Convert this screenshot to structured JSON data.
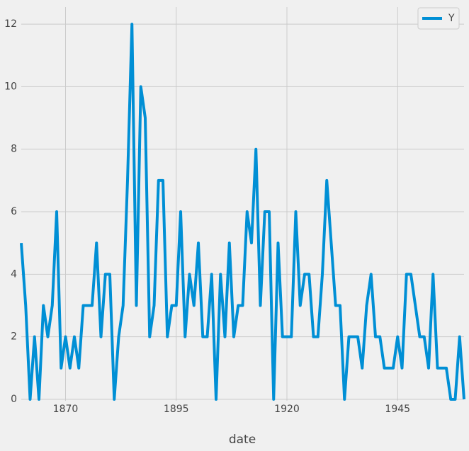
{
  "chart_data": {
    "type": "line",
    "x": [
      1860,
      1861,
      1862,
      1863,
      1864,
      1865,
      1866,
      1867,
      1868,
      1869,
      1870,
      1871,
      1872,
      1873,
      1874,
      1875,
      1876,
      1877,
      1878,
      1879,
      1880,
      1881,
      1882,
      1883,
      1884,
      1885,
      1886,
      1887,
      1888,
      1889,
      1890,
      1891,
      1892,
      1893,
      1894,
      1895,
      1896,
      1897,
      1898,
      1899,
      1900,
      1901,
      1902,
      1903,
      1904,
      1905,
      1906,
      1907,
      1908,
      1909,
      1910,
      1911,
      1912,
      1913,
      1914,
      1915,
      1916,
      1917,
      1918,
      1919,
      1920,
      1921,
      1922,
      1923,
      1924,
      1925,
      1926,
      1927,
      1928,
      1929,
      1930,
      1931,
      1932,
      1933,
      1934,
      1935,
      1936,
      1937,
      1938,
      1939,
      1940,
      1941,
      1942,
      1943,
      1944,
      1945,
      1946,
      1947,
      1948,
      1949,
      1950,
      1951,
      1952,
      1953,
      1954,
      1955,
      1956,
      1957,
      1958,
      1959,
      1960
    ],
    "series": [
      {
        "name": "Y",
        "color": "#008fd5",
        "values": [
          5,
          3,
          0,
          2,
          0,
          3,
          2,
          3,
          6,
          1,
          2,
          1,
          2,
          1,
          3,
          3,
          3,
          5,
          2,
          4,
          4,
          0,
          2,
          3,
          7,
          12,
          3,
          10,
          9,
          2,
          3,
          7,
          7,
          2,
          3,
          3,
          6,
          2,
          4,
          3,
          5,
          2,
          2,
          4,
          0,
          4,
          2,
          5,
          2,
          3,
          3,
          6,
          5,
          8,
          3,
          6,
          6,
          0,
          5,
          2,
          2,
          2,
          6,
          3,
          4,
          4,
          2,
          2,
          4,
          7,
          5,
          3,
          3,
          0,
          2,
          2,
          2,
          1,
          3,
          4,
          2,
          2,
          1,
          1,
          1,
          2,
          1,
          4,
          4,
          3,
          2,
          2,
          1,
          4,
          1,
          1,
          1,
          0,
          0,
          2,
          0
        ]
      }
    ],
    "x_label": "date",
    "xlim": [
      1860,
      1960
    ],
    "xticks": [
      1870,
      1895,
      1920,
      1945
    ],
    "ylim": [
      0,
      12.5
    ],
    "yticks": [
      0,
      2,
      4,
      6,
      8,
      10,
      12
    ],
    "grid": true,
    "legend": "upper right"
  }
}
